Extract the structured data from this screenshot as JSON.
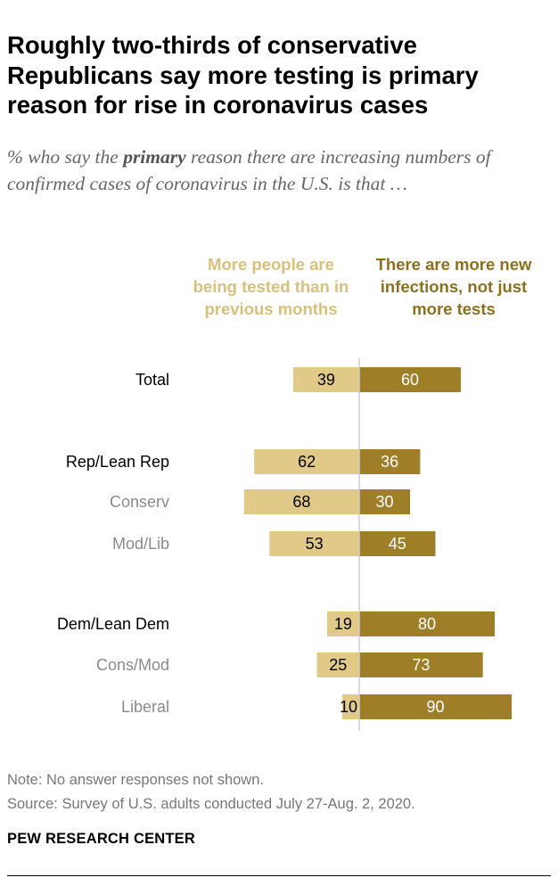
{
  "title": "Roughly two-thirds of conservative Republicans say more testing is primary reason for rise in coronavirus cases",
  "subtitle": {
    "before": "% who say the ",
    "emphasis": "primary",
    "after": " reason there are increasing numbers of confirmed cases of coronavirus in the U.S. is that …"
  },
  "legend": {
    "left": "More people are being tested than in previous months",
    "right": "There are more new infections, not just more tests"
  },
  "colors": {
    "left_bar": "#e1ca88",
    "right_bar": "#9e7e27",
    "left_text": "#d9c07a",
    "right_text": "#8e6f1d",
    "axis": "#cfcfcf",
    "label_main": "#000000",
    "label_sub": "#8a8a8a"
  },
  "chart_data": {
    "type": "bar",
    "orientation": "horizontal-diverging",
    "categories": [
      "Total",
      "Rep/Lean Rep",
      "Conserv",
      "Mod/Lib",
      "Dem/Lean Dem",
      "Cons/Mod",
      "Liberal"
    ],
    "category_level": [
      "main",
      "main",
      "sub",
      "sub",
      "main",
      "sub",
      "sub"
    ],
    "series": [
      {
        "name": "More people are being tested than in previous months",
        "values": [
          39,
          62,
          68,
          53,
          19,
          25,
          10
        ]
      },
      {
        "name": "There are more new infections, not just more tests",
        "values": [
          60,
          36,
          30,
          45,
          80,
          73,
          90
        ]
      }
    ],
    "xlim": [
      0,
      100
    ]
  },
  "note": "Note: No answer responses not shown.",
  "source": "Source: Survey of U.S. adults conducted July 27-Aug. 2, 2020.",
  "brand": "PEW RESEARCH CENTER"
}
